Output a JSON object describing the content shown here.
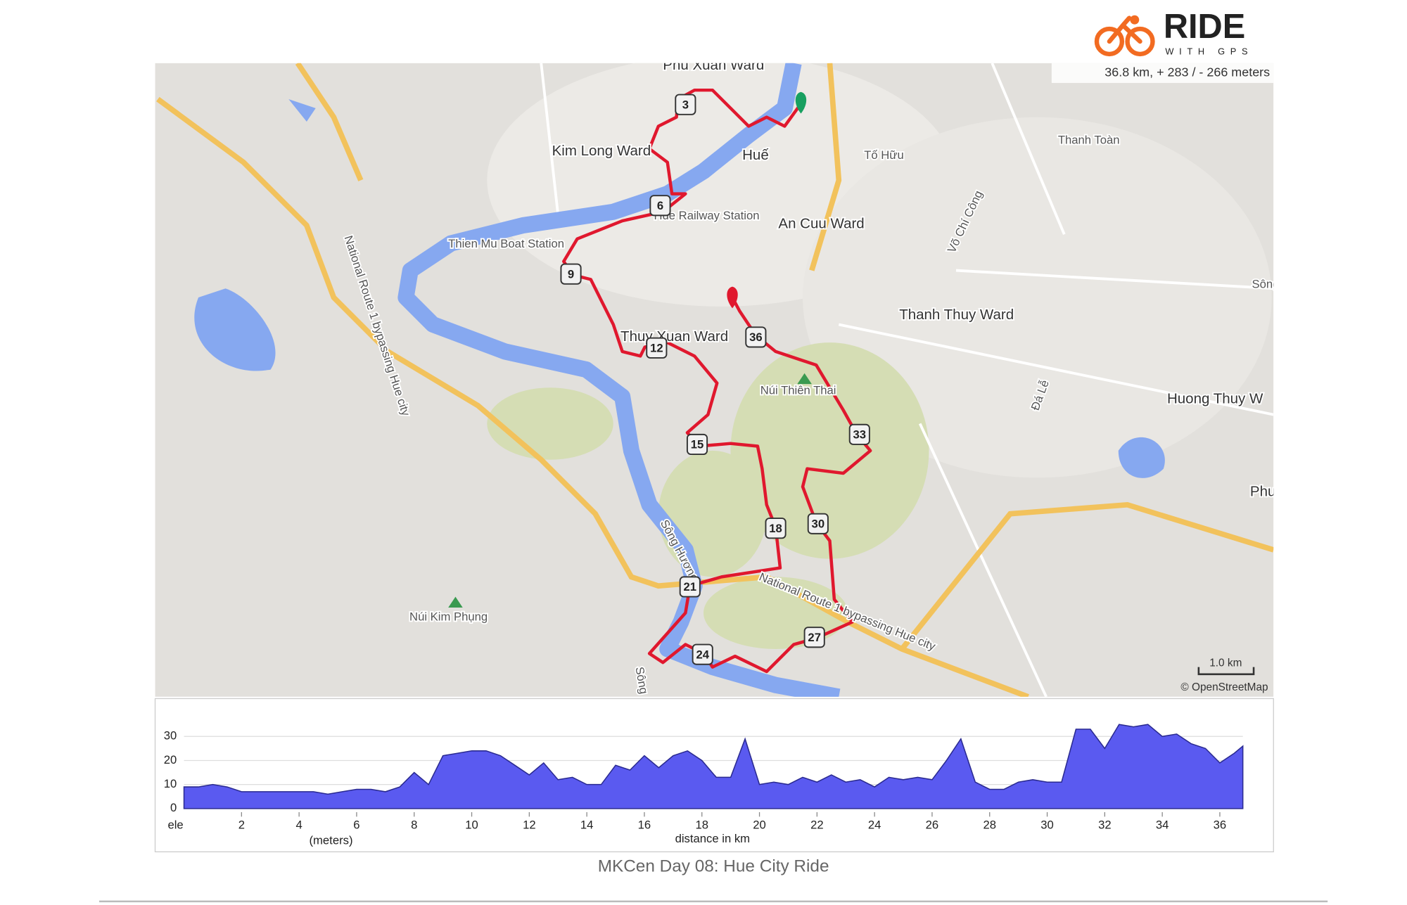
{
  "header": {
    "logo_title": "RIDE",
    "logo_subtitle": "WITH GPS"
  },
  "map": {
    "stats": "36.8 km, + 283 / - 266 meters",
    "labels": [
      "Phu Xuan Ward",
      "Kim Long Ward",
      "Huế",
      "Tố Hữu",
      "Thanh Toàn",
      "Hue Railway Station",
      "An Cuu Ward",
      "Thien Mu Boat Station",
      "Võ Chí Công",
      "Thanh Thuy Ward",
      "Thuy Xuan Ward",
      "Núi Thiên Thai",
      "Huong Thuy W",
      "Đá Lễ",
      "Phu",
      "National Route 1 bypassing Hue city",
      "Sông Hương",
      "National Route 1 bypassing Hue city",
      "Núi Kim Phụng",
      "Sông",
      "Sông"
    ],
    "route_markers": [
      3,
      6,
      9,
      12,
      15,
      18,
      21,
      24,
      27,
      30,
      33,
      36
    ],
    "scale": "1.0 km",
    "attribution": "© OpenStreetMap"
  },
  "chart_data": {
    "type": "area",
    "x_label": "distance in km",
    "y_label": "ele",
    "y_unit_label": "(meters)",
    "color": "#5a5af0",
    "x": [
      0,
      0.5,
      1,
      1.5,
      2,
      2.5,
      3,
      3.5,
      4,
      4.5,
      5,
      5.5,
      6,
      6.5,
      7,
      7.5,
      8,
      8.5,
      9,
      9.5,
      10,
      10.5,
      11,
      11.5,
      12,
      12.5,
      13,
      13.5,
      14,
      14.5,
      15,
      15.5,
      16,
      16.5,
      17,
      17.5,
      18,
      18.5,
      19,
      19.5,
      20,
      20.5,
      21,
      21.5,
      22,
      22.5,
      23,
      23.5,
      24,
      24.5,
      25,
      25.5,
      26,
      26.5,
      27,
      27.5,
      28,
      28.5,
      29,
      29.5,
      30,
      30.5,
      31,
      31.5,
      32,
      32.5,
      33,
      33.5,
      34,
      34.5,
      35,
      35.5,
      36,
      36.5,
      36.8
    ],
    "values": [
      9,
      9,
      10,
      9,
      7,
      7,
      7,
      7,
      7,
      7,
      6,
      7,
      8,
      8,
      7,
      9,
      15,
      10,
      22,
      23,
      24,
      24,
      22,
      18,
      14,
      19,
      12,
      13,
      10,
      10,
      18,
      16,
      22,
      17,
      22,
      24,
      20,
      13,
      13,
      29,
      10,
      11,
      10,
      13,
      11,
      14,
      11,
      12,
      9,
      13,
      12,
      13,
      12,
      20,
      29,
      11,
      8,
      8,
      11,
      12,
      11,
      11,
      33,
      33,
      25,
      35,
      34,
      35,
      30,
      31,
      27,
      25,
      19,
      23,
      26
    ],
    "xlim": [
      0,
      36.8
    ],
    "ylim": [
      0,
      36
    ],
    "xticks": [
      2,
      4,
      6,
      8,
      10,
      12,
      14,
      16,
      18,
      20,
      22,
      24,
      26,
      28,
      30,
      32,
      34,
      36
    ],
    "yticks": [
      0,
      10,
      20,
      30
    ],
    "grid": true
  },
  "caption": "MKCen Day 08: Hue City Ride"
}
